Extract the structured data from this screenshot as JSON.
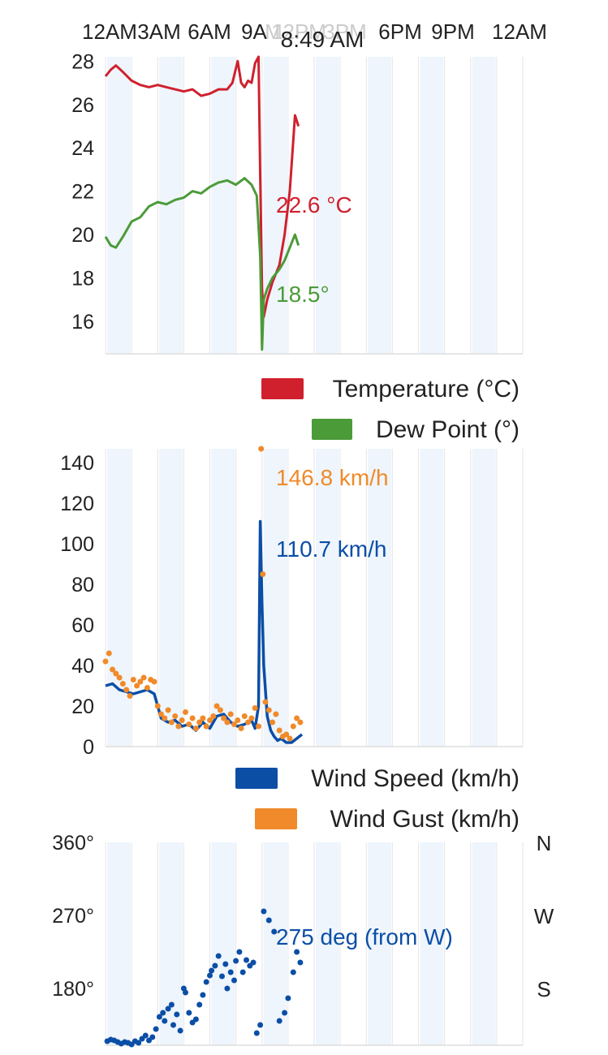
{
  "header": {
    "cursor_time": "8:49 AM",
    "time_labels": [
      "12AM",
      "3AM",
      "6AM",
      "9A",
      "M",
      "12PM",
      "3PM",
      "6PM",
      "9PM",
      "12AM"
    ]
  },
  "colors": {
    "temperature": "#d0202e",
    "dew_point": "#4b9b39",
    "wind_speed": "#0b4ea6",
    "wind_gust": "#f08a2a",
    "wind_dir": "#0b4ea6",
    "grid": "#e6e6e6",
    "band": "#eef5fc",
    "axis_text": "#222222"
  },
  "chart_data": [
    {
      "type": "line",
      "series": [
        {
          "name": "Temperature (°C)",
          "x": [
            0,
            0.3,
            0.6,
            1,
            1.5,
            2,
            2.5,
            3,
            3.5,
            4,
            4.5,
            5,
            5.5,
            6,
            6.5,
            7,
            7.3,
            7.6,
            7.8,
            8,
            8.2,
            8.4,
            8.6,
            8.8,
            8.9,
            9.0,
            9.1,
            9.3,
            9.6,
            10.0,
            10.3,
            10.6,
            10.9,
            11.1
          ],
          "values": [
            27.3,
            27.6,
            27.8,
            27.5,
            27.1,
            26.9,
            26.8,
            26.9,
            26.8,
            26.7,
            26.6,
            26.7,
            26.4,
            26.5,
            26.7,
            26.7,
            27.0,
            28.0,
            27.0,
            26.8,
            27.1,
            27.0,
            27.9,
            28.2,
            22.6,
            17.5,
            16.2,
            17.0,
            17.8,
            18.6,
            20.0,
            22.0,
            25.5,
            25.0
          ]
        },
        {
          "name": "Dew Point (°)",
          "x": [
            0,
            0.3,
            0.6,
            1,
            1.5,
            2,
            2.5,
            3,
            3.5,
            4,
            4.5,
            5,
            5.5,
            6,
            6.5,
            7,
            7.5,
            8,
            8.4,
            8.7,
            8.9,
            9.0,
            9.1,
            9.3,
            9.6,
            10.0,
            10.3,
            10.6,
            10.9,
            11.1
          ],
          "values": [
            19.9,
            19.5,
            19.4,
            19.9,
            20.6,
            20.8,
            21.3,
            21.5,
            21.4,
            21.6,
            21.7,
            22.0,
            21.9,
            22.2,
            22.4,
            22.5,
            22.3,
            22.6,
            22.3,
            21.8,
            19.0,
            14.7,
            17.0,
            17.5,
            18.0,
            18.4,
            18.8,
            19.4,
            20.0,
            19.5
          ]
        }
      ],
      "ylim": [
        14.5,
        28.2
      ],
      "yticks": [
        16,
        18,
        20,
        22,
        24,
        26,
        28
      ],
      "xlim": [
        0,
        24
      ],
      "legend": "bottom-right",
      "annotations": [
        "22.6 °C",
        "18.5°"
      ]
    },
    {
      "type": "line",
      "series": [
        {
          "name": "Wind Speed (km/h)",
          "x": [
            0,
            0.4,
            0.8,
            1.2,
            1.6,
            2.0,
            2.4,
            2.8,
            3.2,
            3.6,
            4.0,
            4.4,
            4.8,
            5.2,
            5.6,
            6.0,
            6.4,
            6.8,
            7.2,
            7.6,
            8.0,
            8.4,
            8.6,
            8.8,
            8.9,
            9.0,
            9.1,
            9.3,
            9.5,
            9.7,
            9.9,
            10.1,
            10.4,
            10.7,
            11.0,
            11.3
          ],
          "values": [
            30,
            31,
            28,
            27,
            26,
            27,
            28,
            26,
            14,
            12,
            13,
            10,
            11,
            8,
            12,
            9,
            15,
            16,
            12,
            10,
            11,
            13,
            9,
            20,
            111,
            70,
            40,
            15,
            8,
            5,
            3,
            4,
            2,
            2,
            4,
            6
          ]
        },
        {
          "name": "Wind Gust (km/h)",
          "x": [
            0,
            0.2,
            0.4,
            0.6,
            0.8,
            1.0,
            1.2,
            1.4,
            1.6,
            1.8,
            2.0,
            2.2,
            2.4,
            2.6,
            2.8,
            3.0,
            3.2,
            3.4,
            3.6,
            3.8,
            4.0,
            4.2,
            4.4,
            4.6,
            4.8,
            5.0,
            5.2,
            5.4,
            5.6,
            5.8,
            6.0,
            6.2,
            6.4,
            6.6,
            6.8,
            7.0,
            7.2,
            7.4,
            7.6,
            7.8,
            8.0,
            8.2,
            8.4,
            8.6,
            8.8,
            8.95,
            9.05,
            9.2,
            9.4,
            9.6,
            9.8,
            10.0,
            10.2,
            10.4,
            10.6,
            10.8,
            11.0,
            11.2
          ],
          "values": [
            42,
            46,
            38,
            36,
            34,
            31,
            28,
            25,
            33,
            30,
            32,
            34,
            29,
            33,
            32,
            20,
            16,
            14,
            18,
            12,
            15,
            10,
            13,
            17,
            11,
            14,
            9,
            12,
            14,
            10,
            13,
            15,
            20,
            18,
            14,
            12,
            16,
            11,
            13,
            9,
            15,
            12,
            14,
            19,
            10,
            146.8,
            85,
            22,
            18,
            12,
            16,
            8,
            5,
            6,
            4,
            10,
            14,
            12
          ]
        }
      ],
      "ylim": [
        0,
        146.8
      ],
      "yticks": [
        0,
        20,
        40,
        60,
        80,
        100,
        120,
        140
      ],
      "xlim": [
        0,
        24
      ],
      "legend": "bottom-right",
      "annotations": [
        "146.8 km/h",
        "110.7 km/h"
      ]
    },
    {
      "type": "scatter",
      "series": [
        {
          "name": "",
          "x": [
            0.1,
            0.3,
            0.5,
            0.7,
            0.9,
            1.1,
            1.3,
            1.5,
            1.7,
            1.9,
            2.1,
            2.3,
            2.5,
            2.7,
            2.9,
            3.1,
            3.3,
            3.4,
            3.6,
            3.8,
            3.9,
            4.1,
            4.3,
            4.5,
            4.6,
            4.8,
            5.0,
            5.2,
            5.4,
            5.6,
            5.8,
            6.0,
            6.1,
            6.3,
            6.5,
            6.7,
            6.9,
            7.0,
            7.2,
            7.4,
            7.5,
            7.7,
            7.9,
            8.1,
            8.3,
            8.5,
            8.7,
            8.9,
            9.1,
            9.4,
            9.7,
            10.0,
            10.3,
            10.5,
            10.8,
            11.0,
            11.2
          ],
          "values": [
            115,
            117,
            116,
            114,
            112,
            114,
            113,
            111,
            115,
            113,
            118,
            122,
            116,
            120,
            130,
            145,
            150,
            140,
            155,
            160,
            135,
            148,
            128,
            180,
            175,
            150,
            138,
            142,
            160,
            172,
            188,
            196,
            202,
            208,
            220,
            195,
            210,
            180,
            200,
            190,
            214,
            225,
            200,
            215,
            208,
            212,
            125,
            135,
            275,
            264,
            250,
            140,
            150,
            168,
            200,
            225,
            212
          ]
        }
      ],
      "ylim": [
        110,
        360
      ],
      "yticks": [
        180,
        270,
        360
      ],
      "ytick_labels": [
        "180°",
        "270°",
        "360°"
      ],
      "right_labels": [
        "N",
        "W",
        "S"
      ],
      "xlim": [
        0,
        24
      ],
      "annotations": [
        "275 deg (from W)"
      ]
    }
  ],
  "legends": {
    "temperature": "Temperature (°C)",
    "dew_point": "Dew Point (°)",
    "wind_speed": "Wind Speed (km/h)",
    "wind_gust": "Wind Gust (km/h)"
  },
  "annotations": {
    "temperature": "22.6 °C",
    "dew_point": "18.5°",
    "gust": "146.8 km/h",
    "speed": "110.7 km/h",
    "direction": "275 deg (from W)"
  }
}
